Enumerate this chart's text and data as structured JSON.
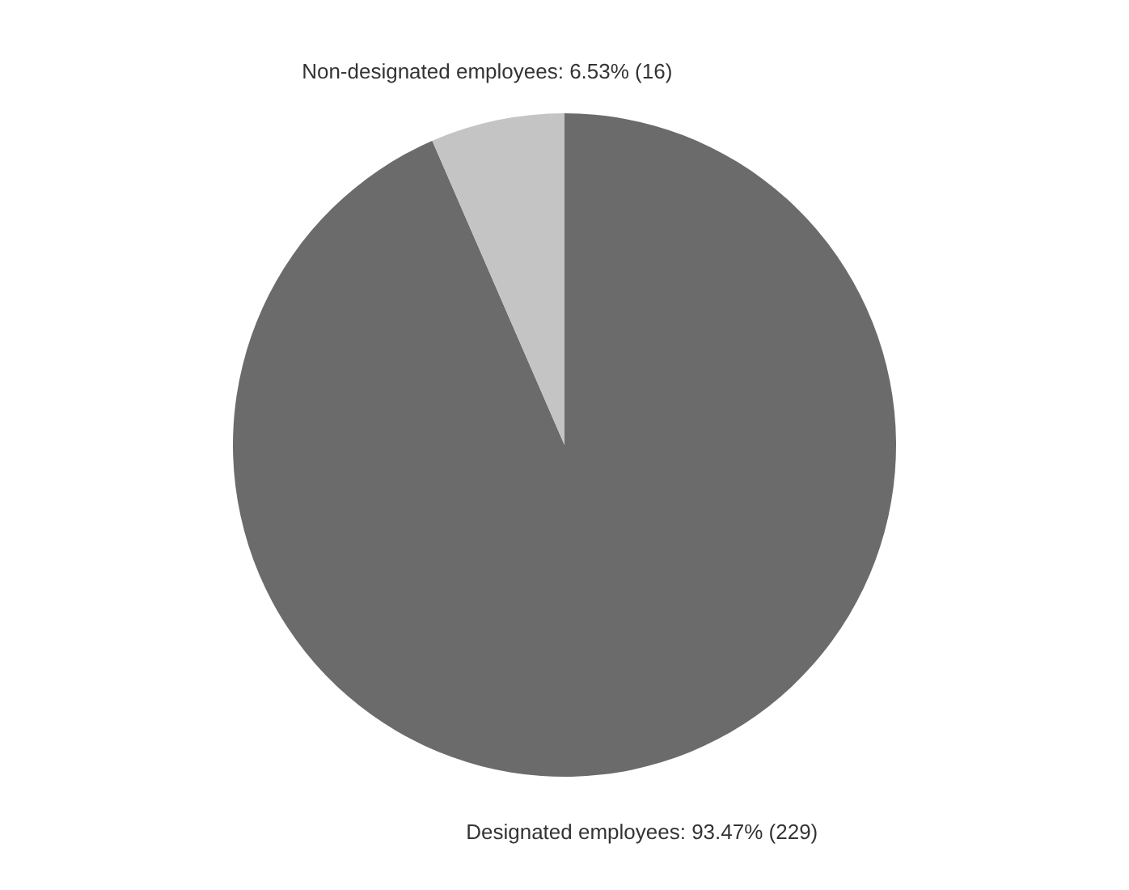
{
  "chart_data": {
    "type": "pie",
    "categories": [
      "Designated employees",
      "Non-designated employees"
    ],
    "values": [
      229,
      16
    ],
    "colors": [
      "#6b6b6b",
      "#c4c4c4"
    ],
    "value_labels": [
      "93.47% (229)",
      "6.53% (16)"
    ],
    "legend": false
  }
}
